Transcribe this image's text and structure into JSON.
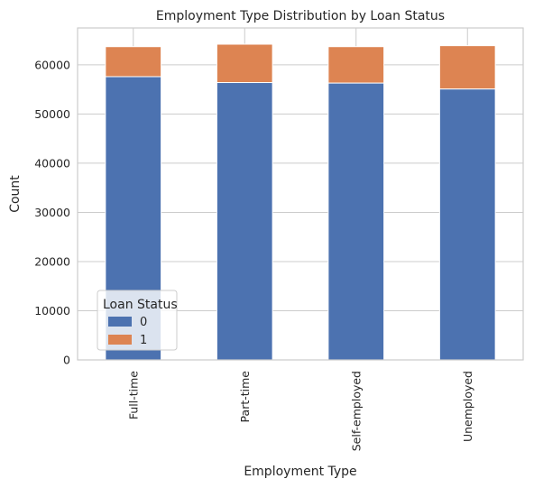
{
  "chart_data": {
    "type": "bar",
    "stacked": true,
    "title": "Employment Type Distribution by Loan Status",
    "xlabel": "Employment Type",
    "ylabel": "Count",
    "categories": [
      "Full-time",
      "Part-time",
      "Self-employed",
      "Unemployed"
    ],
    "series": [
      {
        "name": "0",
        "color": "#4c72b0",
        "values": [
          57600,
          56400,
          56300,
          55100
        ]
      },
      {
        "name": "1",
        "color": "#dd8452",
        "values": [
          6100,
          7800,
          7400,
          8800
        ]
      }
    ],
    "ylim": [
      0,
      67500
    ],
    "yticks": [
      0,
      10000,
      20000,
      30000,
      40000,
      50000,
      60000
    ],
    "ytick_labels": [
      "0",
      "10000",
      "20000",
      "30000",
      "40000",
      "50000",
      "60000"
    ],
    "grid": true,
    "legend": {
      "title": "Loan Status",
      "placement": "lower-left"
    }
  }
}
